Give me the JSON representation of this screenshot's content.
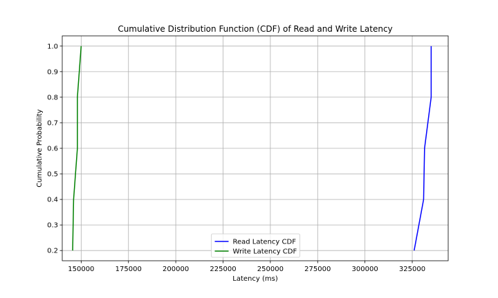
{
  "chart_data": {
    "type": "line",
    "title": "Cumulative Distribution Function (CDF) of Read and Write Latency",
    "xlabel": "Latency (ms)",
    "ylabel": "Cumulative Probability",
    "xlim": [
      140000,
      344000
    ],
    "ylim": [
      0.16,
      1.04
    ],
    "xticks": [
      150000,
      175000,
      200000,
      225000,
      250000,
      275000,
      300000,
      325000
    ],
    "xtick_labels": [
      "150000",
      "175000",
      "200000",
      "225000",
      "250000",
      "275000",
      "300000",
      "325000"
    ],
    "yticks": [
      0.2,
      0.3,
      0.4,
      0.5,
      0.6,
      0.7,
      0.8,
      0.9,
      1.0
    ],
    "ytick_labels": [
      "0.2",
      "0.3",
      "0.4",
      "0.5",
      "0.6",
      "0.7",
      "0.8",
      "0.9",
      "1.0"
    ],
    "grid": true,
    "legend_position": "lower center",
    "series": [
      {
        "name": "Read Latency CDF",
        "color": "#0000ff",
        "x": [
          326000,
          331000,
          331500,
          335000,
          335000
        ],
        "y": [
          0.2,
          0.4,
          0.6,
          0.8,
          1.0
        ]
      },
      {
        "name": "Write Latency CDF",
        "color": "#008000",
        "x": [
          145500,
          146000,
          148000,
          148000,
          150000
        ],
        "y": [
          0.2,
          0.4,
          0.6,
          0.8,
          1.0
        ]
      }
    ]
  }
}
